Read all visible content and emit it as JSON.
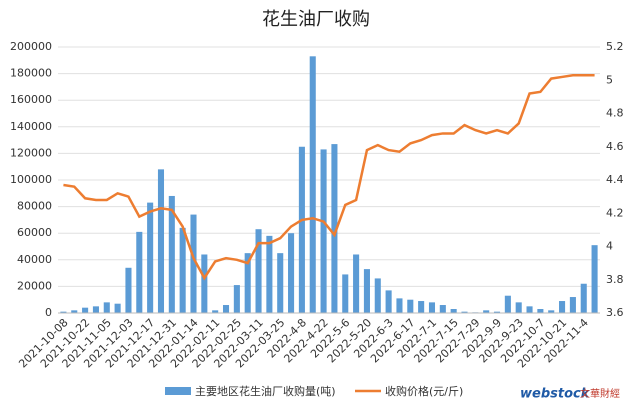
{
  "chart_data": {
    "type": "bar_line",
    "title": "花生油厂收购",
    "categories": [
      "2021-10-08",
      null,
      "2021-10-22",
      null,
      "2021-11-05",
      null,
      "2021-12-03",
      null,
      "2021-12-17",
      null,
      "2021-12-31",
      null,
      "2022-01-14",
      null,
      "2022-02-11",
      null,
      "2022-02-25",
      null,
      "2022-03-11",
      null,
      "2022-03-25",
      null,
      "2022-4-8",
      null,
      "2022-4-22",
      null,
      "2022-5-6",
      null,
      "2022-5-20",
      null,
      "2022-6-3",
      null,
      "2022-6-17",
      null,
      "2022-7-1",
      null,
      "2022-7-15",
      null,
      "2022-7-29",
      null,
      "2022-9-9",
      null,
      "2022-9-23",
      null,
      "2022-10-7",
      null,
      "2022-10-21",
      null,
      "2022-11-4",
      null
    ],
    "series": [
      {
        "name": "主要地区花生油厂收购量(吨)",
        "color": "#5b9bd5",
        "kind": "bar",
        "values": [
          1000,
          2000,
          4000,
          5000,
          8000,
          7000,
          34000,
          61000,
          83000,
          108000,
          88000,
          64000,
          74000,
          44000,
          2000,
          6000,
          21000,
          45000,
          63000,
          58000,
          45000,
          60000,
          125000,
          193000,
          123000,
          127000,
          29000,
          44000,
          33000,
          26000,
          17000,
          11000,
          10000,
          9000,
          8000,
          6000,
          3000,
          1000,
          500,
          2000,
          1000,
          13000,
          8000,
          5000,
          3000,
          2000,
          9000,
          12000,
          22000,
          51000
        ]
      },
      {
        "name": "收购价格(元/斤)",
        "color": "#ed7d31",
        "kind": "line",
        "axis": "y2",
        "values": [
          4.37,
          4.36,
          4.29,
          4.28,
          4.28,
          4.32,
          4.3,
          4.18,
          4.21,
          4.23,
          4.22,
          4.12,
          3.93,
          3.81,
          3.91,
          3.93,
          3.92,
          3.9,
          4.02,
          4.02,
          4.05,
          4.12,
          4.16,
          4.17,
          4.15,
          4.07,
          4.25,
          4.28,
          4.58,
          4.61,
          4.58,
          4.57,
          4.62,
          4.64,
          4.67,
          4.68,
          4.68,
          4.73,
          4.7,
          4.68,
          4.7,
          4.68,
          4.74,
          4.92,
          4.93,
          5.01,
          5.02,
          5.03,
          5.03,
          5.03
        ]
      }
    ],
    "ylim": [
      0,
      200000
    ],
    "yticks": [
      0,
      20000,
      40000,
      60000,
      80000,
      100000,
      120000,
      140000,
      160000,
      180000,
      200000
    ],
    "y2lim": [
      3.6,
      5.2
    ],
    "y2ticks": [
      3.6,
      3.8,
      4,
      4.2,
      4.4,
      4.6,
      4.8,
      5,
      5.2
    ],
    "legend": "bottom",
    "watermark": "webstock",
    "watermark_cn": "文華財經"
  }
}
